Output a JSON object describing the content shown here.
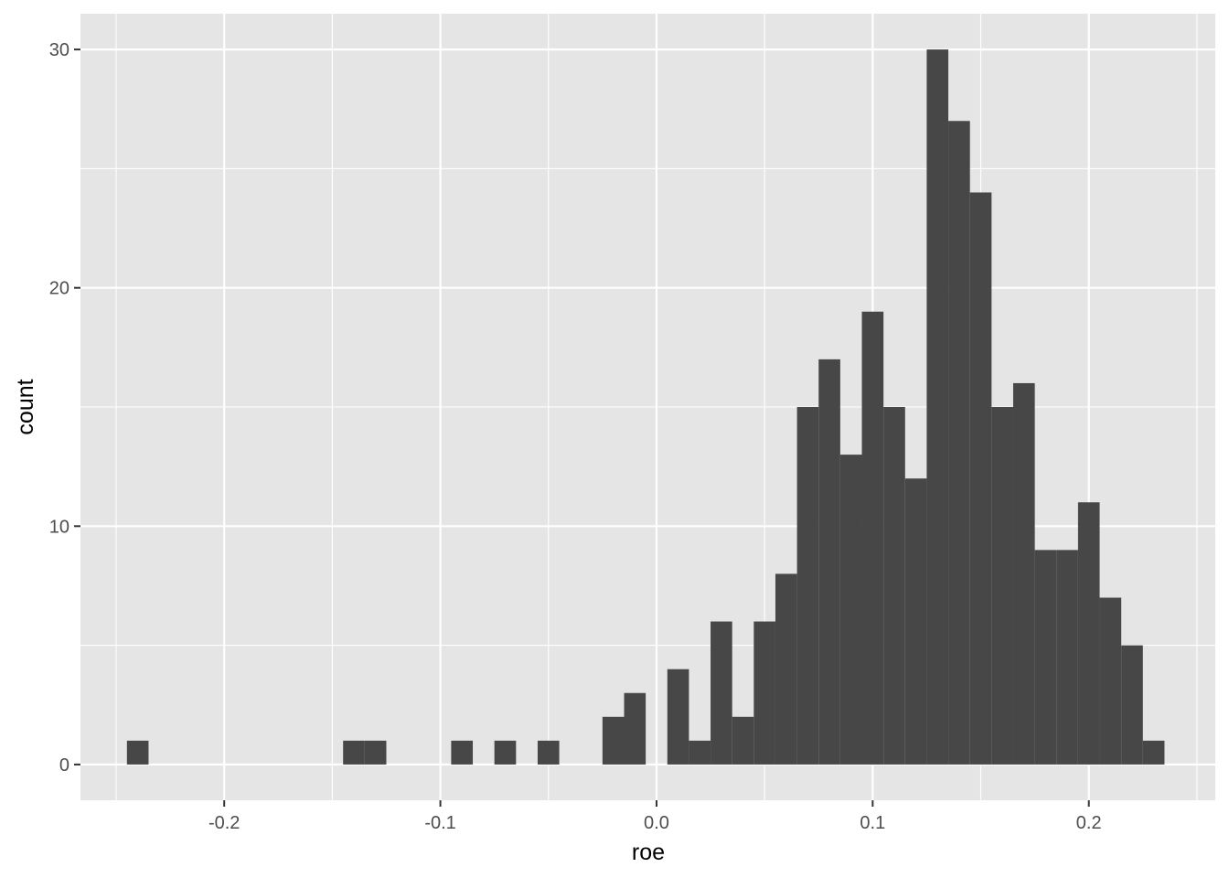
{
  "chart_data": {
    "type": "bar",
    "subtype": "histogram",
    "title": "",
    "xlabel": "roe",
    "ylabel": "count",
    "xlim": [
      -0.2665,
      0.2585
    ],
    "ylim": [
      -1.5,
      31.5
    ],
    "x_ticks": [
      -0.2,
      -0.1,
      0.0,
      0.1,
      0.2
    ],
    "x_tick_labels": [
      "-0.2",
      "-0.1",
      "0.0",
      "0.1",
      "0.2"
    ],
    "x_minor_ticks": [
      -0.25,
      -0.15,
      -0.05,
      0.05,
      0.15,
      0.25
    ],
    "y_ticks": [
      0,
      10,
      20,
      30
    ],
    "y_tick_labels": [
      "0",
      "10",
      "20",
      "30"
    ],
    "y_minor_ticks": [
      5,
      15,
      25
    ],
    "grid": true,
    "legend": "none",
    "background_color": "#e5e5e5",
    "bar_color": "#474747",
    "grid_color": "#ffffff",
    "bin_width": 0.01,
    "bins": [
      {
        "x": -0.24,
        "count": 1
      },
      {
        "x": -0.14,
        "count": 1
      },
      {
        "x": -0.13,
        "count": 1
      },
      {
        "x": -0.09,
        "count": 1
      },
      {
        "x": -0.07,
        "count": 1
      },
      {
        "x": -0.05,
        "count": 1
      },
      {
        "x": -0.02,
        "count": 2
      },
      {
        "x": -0.01,
        "count": 3
      },
      {
        "x": 0.01,
        "count": 4
      },
      {
        "x": 0.02,
        "count": 1
      },
      {
        "x": 0.03,
        "count": 6
      },
      {
        "x": 0.04,
        "count": 2
      },
      {
        "x": 0.05,
        "count": 6
      },
      {
        "x": 0.06,
        "count": 8
      },
      {
        "x": 0.07,
        "count": 15
      },
      {
        "x": 0.08,
        "count": 17
      },
      {
        "x": 0.09,
        "count": 13
      },
      {
        "x": 0.1,
        "count": 19
      },
      {
        "x": 0.11,
        "count": 15
      },
      {
        "x": 0.12,
        "count": 12
      },
      {
        "x": 0.13,
        "count": 30
      },
      {
        "x": 0.14,
        "count": 27
      },
      {
        "x": 0.15,
        "count": 24
      },
      {
        "x": 0.16,
        "count": 15
      },
      {
        "x": 0.17,
        "count": 16
      },
      {
        "x": 0.18,
        "count": 9
      },
      {
        "x": 0.19,
        "count": 9
      },
      {
        "x": 0.2,
        "count": 11
      },
      {
        "x": 0.21,
        "count": 7
      },
      {
        "x": 0.22,
        "count": 5
      },
      {
        "x": 0.23,
        "count": 1
      }
    ]
  }
}
